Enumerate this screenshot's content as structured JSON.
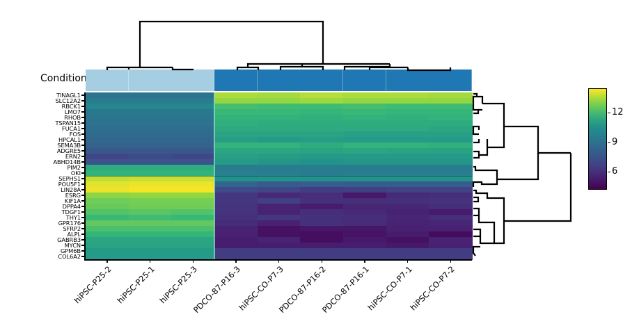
{
  "chart_data": {
    "type": "heatmap",
    "title": "",
    "xlabel": "",
    "ylabel": "",
    "colormap": "viridis",
    "colorbar": {
      "ticks": [
        6,
        9,
        12
      ],
      "range": [
        4.3,
        14.5
      ]
    },
    "annotation_row": {
      "label": "Condition",
      "colors": [
        "#a6cee3",
        "#a6cee3",
        "#a6cee3",
        "#1f78b4",
        "#1f78b4",
        "#1f78b4",
        "#1f78b4",
        "#1f78b4",
        "#1f78b4"
      ]
    },
    "columns": [
      "hiPSC-P25-2",
      "hiPSC-P25-1",
      "hiPSC-P25-3",
      "PDCO-87-P16-3",
      "hiPSC-CO-P7-3",
      "PDCO-87-P16-2",
      "PDCO-87-P16-1",
      "hiPSC-CO-P7-1",
      "hiPSC-CO-P7-2"
    ],
    "rows": [
      "TINAGL1",
      "SLC12A2",
      "RBCK1",
      "LMO7",
      "RHOB",
      "TSPAN15",
      "FUCA1",
      "FOS",
      "HPCAL1",
      "SEMA3B",
      "ADGRE5",
      "ERN2",
      "ABHD14B",
      "PIM2",
      "OKI",
      "SEPHS1",
      "POU5F1",
      "LIN28A",
      "ESRG",
      "KIF1A",
      "DPPA4",
      "TDGF1",
      "THY1",
      "GPR176",
      "SFRP2",
      "ALPL",
      "GABRB3",
      "MYCN",
      "GPM6B",
      "COL6A2"
    ],
    "values": [
      [
        9.2,
        9.2,
        9.2,
        13.6,
        13.5,
        13.7,
        13.6,
        13.6,
        13.5
      ],
      [
        9.6,
        9.6,
        9.6,
        13.3,
        13.3,
        13.4,
        13.3,
        13.3,
        13.3
      ],
      [
        10.2,
        10.2,
        10.2,
        12.2,
        12.1,
        12.1,
        12.2,
        12.1,
        12.1
      ],
      [
        9.4,
        9.4,
        9.4,
        12.0,
        12.0,
        11.9,
        12.0,
        11.9,
        11.9
      ],
      [
        9.3,
        9.3,
        9.3,
        11.8,
        11.8,
        11.7,
        11.8,
        11.7,
        11.8
      ],
      [
        9.1,
        9.1,
        9.1,
        11.7,
        11.6,
        11.6,
        11.6,
        11.6,
        11.6
      ],
      [
        8.9,
        8.9,
        8.9,
        11.5,
        11.5,
        11.5,
        11.5,
        11.5,
        11.4
      ],
      [
        8.7,
        8.7,
        8.7,
        11.3,
        11.3,
        11.3,
        11.2,
        11.2,
        11.2
      ],
      [
        8.5,
        8.5,
        8.5,
        11.1,
        11.0,
        11.1,
        11.0,
        11.0,
        11.0
      ],
      [
        8.3,
        8.3,
        8.3,
        11.8,
        11.8,
        11.6,
        11.8,
        11.8,
        11.7
      ],
      [
        7.8,
        7.8,
        7.8,
        11.4,
        11.4,
        11.3,
        11.4,
        11.3,
        11.3
      ],
      [
        6.9,
        7.2,
        7.0,
        11.2,
        11.1,
        11.0,
        11.0,
        11.0,
        11.0
      ],
      [
        7.6,
        7.6,
        7.6,
        11.0,
        10.9,
        10.8,
        10.9,
        10.9,
        10.9
      ],
      [
        11.6,
        11.6,
        11.6,
        9.6,
        9.6,
        9.6,
        9.6,
        9.6,
        9.6
      ],
      [
        11.8,
        11.8,
        11.8,
        9.8,
        9.7,
        9.6,
        9.7,
        9.7,
        9.7
      ],
      [
        13.8,
        13.9,
        13.9,
        10.7,
        10.8,
        10.7,
        10.8,
        10.8,
        10.8
      ],
      [
        14.2,
        14.3,
        14.3,
        8.4,
        8.0,
        8.1,
        8.1,
        8.1,
        8.1
      ],
      [
        14.3,
        14.4,
        14.4,
        7.2,
        7.0,
        6.6,
        6.7,
        6.8,
        6.8
      ],
      [
        13.2,
        13.3,
        13.3,
        6.3,
        5.8,
        6.0,
        5.2,
        5.9,
        6.0
      ],
      [
        12.8,
        12.9,
        12.9,
        6.3,
        6.7,
        6.1,
        6.0,
        6.1,
        6.2
      ],
      [
        12.7,
        12.8,
        12.8,
        6.2,
        5.6,
        5.3,
        5.7,
        5.7,
        6.0
      ],
      [
        12.4,
        12.5,
        12.4,
        6.2,
        5.6,
        6.0,
        5.8,
        5.6,
        5.3
      ],
      [
        12.0,
        12.1,
        12.0,
        6.1,
        6.3,
        6.1,
        6.0,
        5.7,
        6.0
      ],
      [
        12.6,
        12.6,
        12.6,
        5.9,
        5.5,
        6.1,
        5.9,
        5.6,
        5.7
      ],
      [
        12.3,
        12.3,
        12.3,
        5.6,
        4.9,
        5.1,
        5.1,
        5.5,
        5.5
      ],
      [
        11.9,
        11.9,
        11.9,
        5.5,
        4.9,
        4.8,
        5.0,
        5.3,
        4.7
      ],
      [
        11.4,
        11.4,
        11.4,
        5.4,
        5.6,
        4.8,
        5.2,
        4.9,
        5.6
      ],
      [
        11.3,
        11.3,
        11.3,
        5.4,
        5.4,
        5.4,
        5.4,
        5.2,
        5.5
      ],
      [
        11.0,
        11.0,
        11.0,
        6.6,
        6.6,
        6.6,
        6.6,
        6.6,
        6.6
      ],
      [
        11.0,
        11.0,
        11.0,
        6.6,
        6.6,
        6.6,
        6.6,
        6.6,
        6.6
      ]
    ],
    "column_clusters": [
      [
        "hiPSC-P25-2",
        "hiPSC-P25-1",
        "hiPSC-P25-3"
      ],
      [
        "PDCO-87-P16-3",
        "hiPSC-CO-P7-3",
        "PDCO-87-P16-2",
        "PDCO-87-P16-1",
        "hiPSC-CO-P7-1",
        "hiPSC-CO-P7-2"
      ]
    ],
    "row_clusters": [
      [
        "TINAGL1",
        "SLC12A2",
        "RBCK1",
        "LMO7",
        "RHOB",
        "TSPAN15",
        "FUCA1",
        "FOS",
        "HPCAL1",
        "SEMA3B",
        "ADGRE5",
        "ERN2",
        "ABHD14B",
        "PIM2",
        "OKI"
      ],
      [
        "SEPHS1",
        "POU5F1",
        "LIN28A",
        "ESRG",
        "KIF1A",
        "DPPA4",
        "TDGF1",
        "THY1",
        "GPR176",
        "SFRP2",
        "ALPL",
        "GABRB3",
        "MYCN",
        "GPM6B",
        "COL6A2"
      ]
    ]
  },
  "labels": {
    "condition": "Condition",
    "cb_tick_12": "12",
    "cb_tick_9": "9",
    "cb_tick_6": "6"
  }
}
